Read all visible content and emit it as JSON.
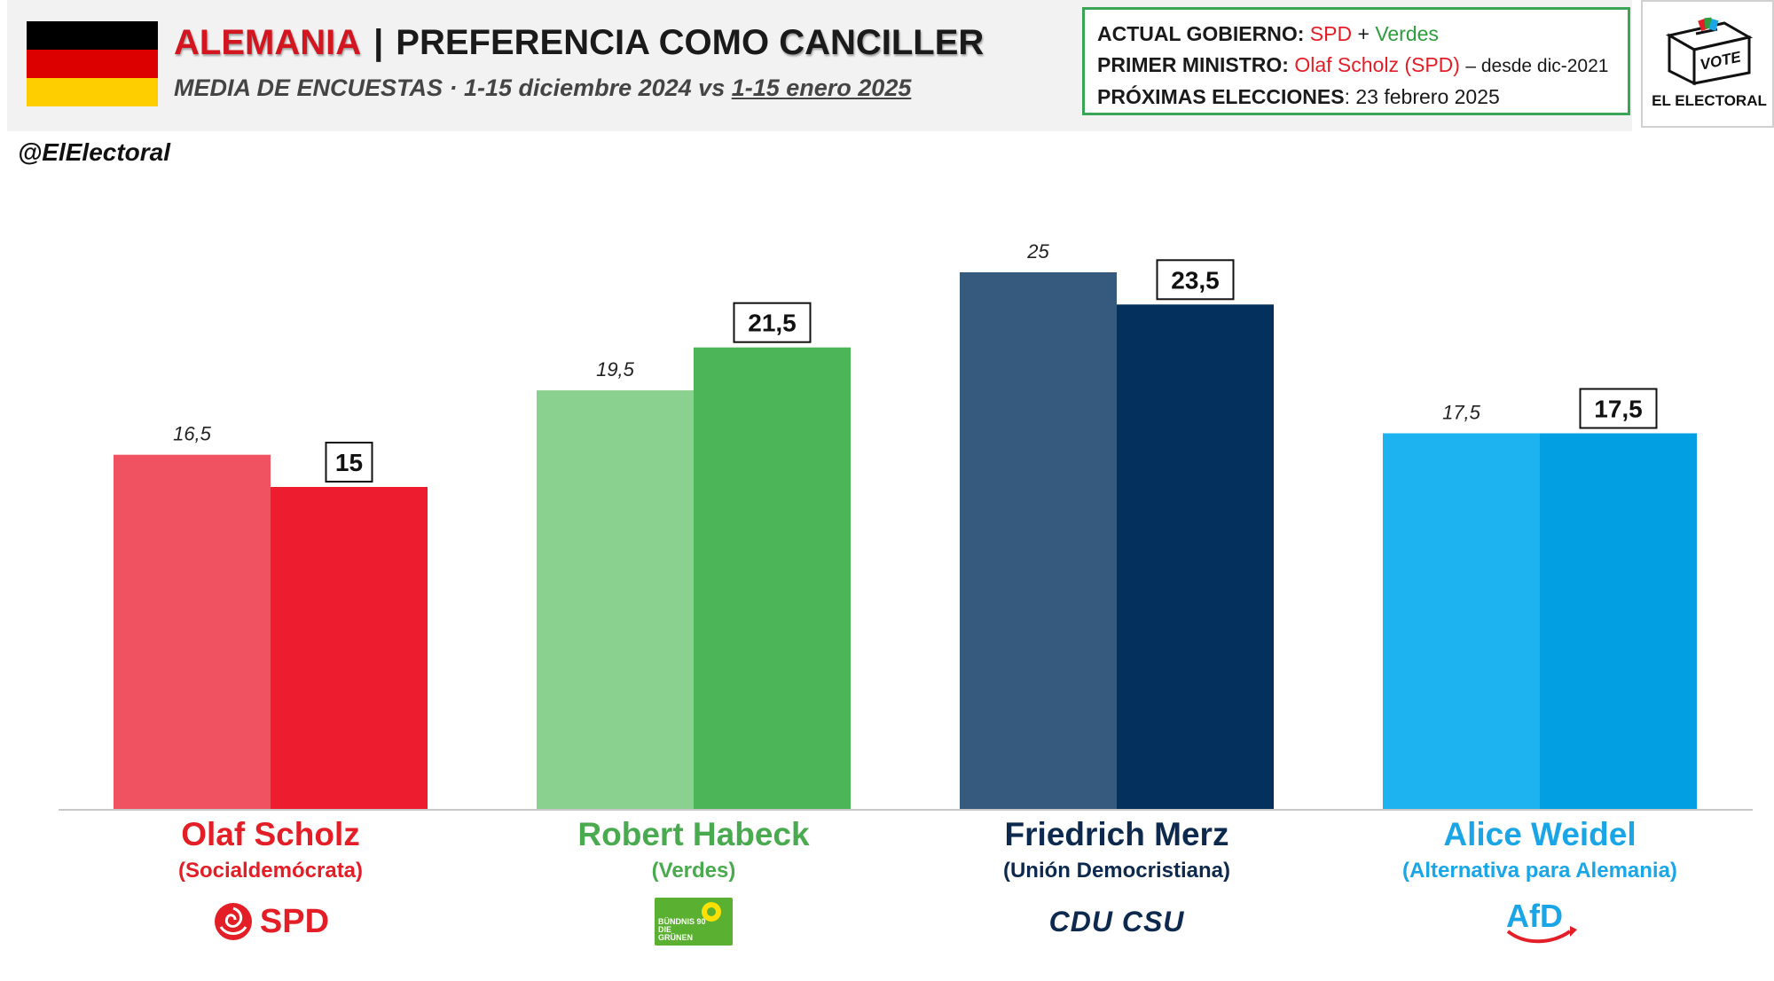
{
  "header": {
    "country": "ALEMANIA",
    "separator": "|",
    "title_light": "PREFERENCIA COMO",
    "title_strong": "CANCILLER",
    "subtitle_prefix": "MEDIA DE ENCUESTAS · 1-15 diciembre 2024 vs ",
    "subtitle_underlined": "1-15 enero 2025",
    "flag_colors": [
      "#000000",
      "#dd0000",
      "#ffce00"
    ]
  },
  "infobox": {
    "gov_label": "ACTUAL GOBIERNO:",
    "gov_party1": "SPD",
    "gov_plus": "+",
    "gov_party2": "Verdes",
    "pm_label": "PRIMER MINISTRO:",
    "pm_name": "Olaf Scholz (SPD)",
    "pm_since": "– desde dic-2021",
    "elections_label": "PRÓXIMAS ELECCIONES",
    "elections_date": ": 23 febrero 2025"
  },
  "logo": {
    "box_text": "VOTE",
    "name": "EL ELECTORAL",
    "icon": "ballot-box-icon"
  },
  "handle": "@ElElectoral",
  "chart_data": {
    "type": "bar",
    "categories": [
      "Olaf Scholz",
      "Robert Habeck",
      "Friedrich Merz",
      "Alice Weidel"
    ],
    "series": [
      {
        "name": "1-15 diciembre 2024",
        "values": [
          16.5,
          19.5,
          25,
          17.5
        ],
        "labels": [
          "16,5",
          "19,5",
          "25",
          "17,5"
        ]
      },
      {
        "name": "1-15 enero 2025",
        "values": [
          15,
          21.5,
          23.5,
          17.5
        ],
        "labels": [
          "15",
          "21,5",
          "23,5",
          "17,5"
        ]
      }
    ],
    "ylim": [
      0,
      28
    ]
  },
  "candidates": [
    {
      "name": "Olaf Scholz",
      "party": "(Socialdemócrata)",
      "logo_text": "SPD",
      "logo_icon": "rose-icon",
      "color": "#e41e26",
      "bar_dec": "#f05262",
      "bar_jan": "#ed1c2e"
    },
    {
      "name": "Robert Habeck",
      "party": "(Verdes)",
      "logo_text": "BÜNDNIS 90 DIE GRÜNEN",
      "logo_icon": "sunflower-icon",
      "color": "#4aaa4f",
      "bar_dec": "#8ad08f",
      "bar_jan": "#4cb558"
    },
    {
      "name": "Friedrich Merz",
      "party": "(Unión Democristiana)",
      "logo_text": "CDU CSU",
      "logo_icon": "cdu-csu-icon",
      "color": "#0d2a4e",
      "bar_dec": "#355a7e",
      "bar_jan": "#03305d"
    },
    {
      "name": "Alice Weidel",
      "party": "(Alternativa para Alemania)",
      "logo_text": "AfD",
      "logo_icon": "afd-arrow-icon",
      "color": "#1aa6e6",
      "bar_dec": "#1cb3f0",
      "bar_jan": "#039fe3"
    }
  ]
}
